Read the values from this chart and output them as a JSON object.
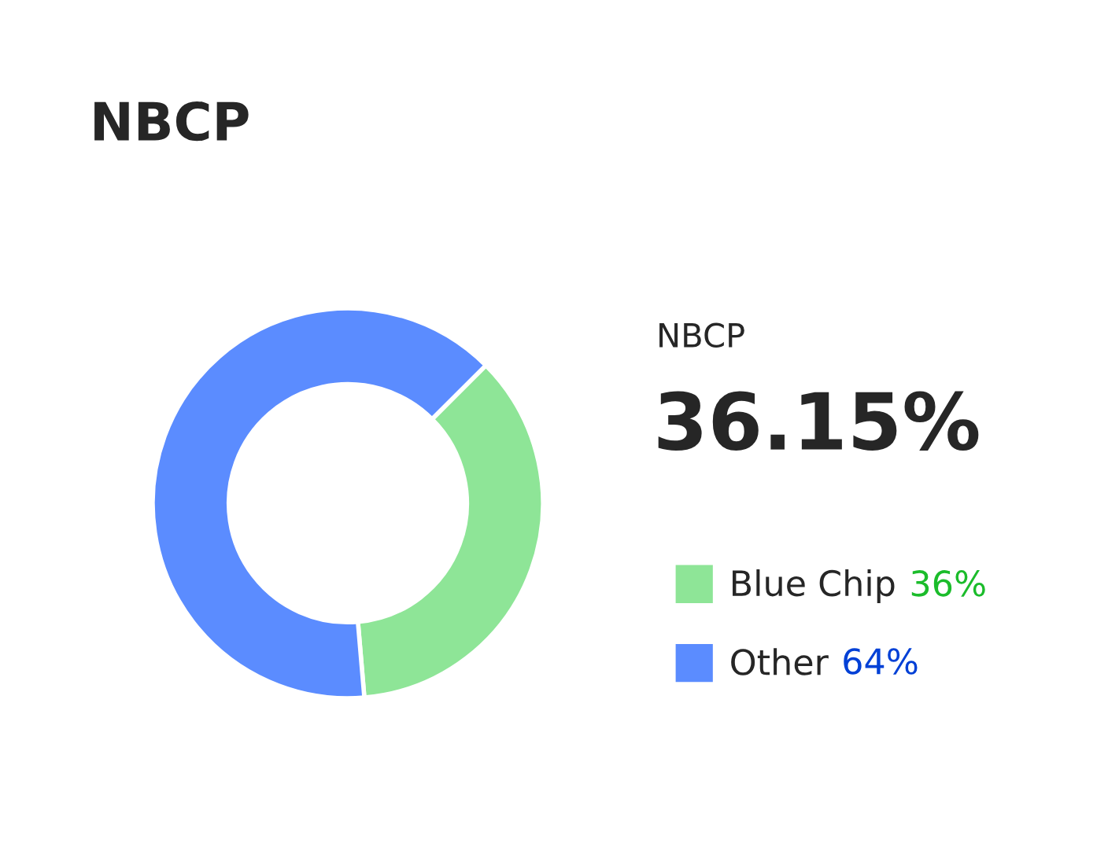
{
  "chart_data": {
    "type": "donut",
    "title": "NBCP",
    "categories": [
      "Blue Chip",
      "Other"
    ],
    "values": [
      36.15,
      63.85
    ],
    "value_labels": [
      "36%",
      "64%"
    ],
    "colors": [
      "#8ee597",
      "#5b8cff"
    ],
    "annotations": [
      "NBCP",
      "36.15%"
    ],
    "legend": "right"
  }
}
